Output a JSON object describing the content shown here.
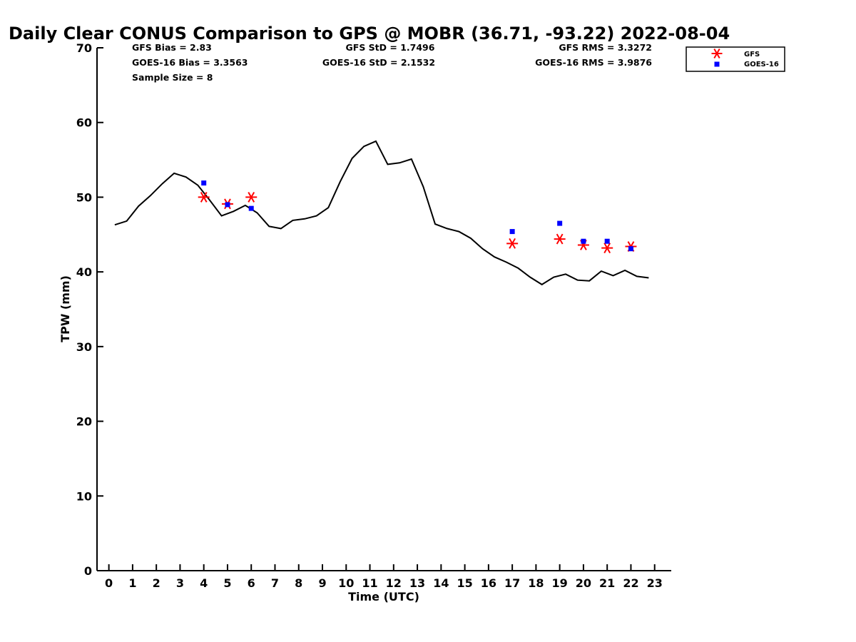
{
  "chart_data": {
    "type": "line",
    "title": "Daily Clear CONUS Comparison to GPS @ MOBR (36.71, -93.22) 2022-08-04",
    "xlabel": "Time (UTC)",
    "ylabel": "TPW (mm)",
    "xlim": [
      -0.5,
      23.7
    ],
    "ylim": [
      0,
      70
    ],
    "xticks": [
      0,
      1,
      2,
      3,
      4,
      5,
      6,
      7,
      8,
      9,
      10,
      11,
      12,
      13,
      14,
      15,
      16,
      17,
      18,
      19,
      20,
      21,
      22,
      23
    ],
    "yticks": [
      0,
      10,
      20,
      30,
      40,
      50,
      60,
      70
    ],
    "grid": false,
    "legend_position": "top-right",
    "stats": [
      {
        "text": "GFS Bias = 2.83"
      },
      {
        "text": "GOES-16 Bias = 3.3563"
      },
      {
        "text": "Sample Size = 8"
      },
      {
        "text": "GFS StD = 1.7496"
      },
      {
        "text": "GOES-16 StD = 2.1532"
      },
      {
        "text": "GFS RMS = 3.3272"
      },
      {
        "text": "GOES-16 RMS = 3.9876"
      }
    ],
    "gps_line": {
      "color": "#000000",
      "x": [
        0.25,
        0.75,
        1.25,
        1.75,
        2.25,
        2.75,
        3.25,
        3.75,
        4.25,
        4.75,
        5.25,
        5.75,
        6.25,
        6.75,
        7.25,
        7.75,
        8.25,
        8.75,
        9.25,
        9.75,
        10.25,
        10.75,
        11.25,
        11.75,
        12.25,
        12.75,
        13.25,
        13.75,
        14.25,
        14.75,
        15.25,
        15.75,
        16.25,
        16.75,
        17.25,
        17.75,
        18.25,
        18.75,
        19.25,
        19.75,
        20.25,
        20.75,
        21.25,
        21.75,
        22.25,
        22.75
      ],
      "y": [
        46.3,
        46.8,
        48.8,
        50.2,
        51.8,
        53.2,
        52.7,
        51.6,
        49.6,
        47.5,
        48.1,
        48.9,
        47.9,
        46.1,
        45.8,
        46.9,
        47.1,
        47.5,
        48.6,
        52.1,
        55.2,
        56.8,
        57.5,
        54.4,
        54.6,
        55.1,
        51.4,
        46.4,
        45.8,
        45.4,
        44.5,
        43.1,
        42.0,
        41.3,
        40.5,
        39.3,
        38.3,
        39.3,
        39.7,
        38.9,
        38.8,
        40.1,
        39.5,
        40.2,
        39.4,
        39.2
      ]
    },
    "series": [
      {
        "name": "GFS",
        "marker": "asterisk",
        "color": "#ff0000",
        "x": [
          4,
          5,
          6,
          17,
          19,
          20,
          21,
          22
        ],
        "y": [
          50.0,
          49.1,
          50.0,
          43.8,
          44.4,
          43.6,
          43.2,
          43.4
        ]
      },
      {
        "name": "GOES-16",
        "marker": "square",
        "color": "#0000ff",
        "x": [
          4,
          5,
          6,
          17,
          19,
          20,
          21,
          22
        ],
        "y": [
          51.9,
          49.0,
          48.5,
          45.4,
          46.5,
          44.1,
          44.1,
          43.1
        ]
      }
    ]
  }
}
